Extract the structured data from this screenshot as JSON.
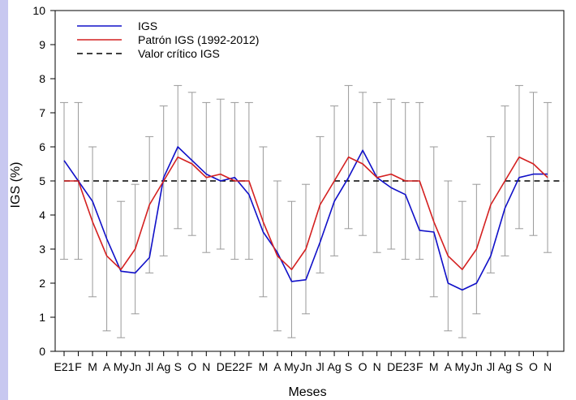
{
  "colors": {
    "igs": "#1010c8",
    "patron": "#d42020",
    "critico": "#000000",
    "errorbar": "#9a9a9a",
    "sidebar": "#c8c8f0"
  },
  "chart_data": {
    "type": "line",
    "xlabel": "Meses",
    "ylabel": "IGS (%)",
    "ylim": [
      0,
      10
    ],
    "yticks": [
      0,
      1,
      2,
      3,
      4,
      5,
      6,
      7,
      8,
      9,
      10
    ],
    "categories": [
      "E21",
      "F",
      "M",
      "A",
      "My",
      "Jn",
      "Jl",
      "Ag",
      "S",
      "O",
      "N",
      "D",
      "E22",
      "F",
      "M",
      "A",
      "My",
      "Jn",
      "Jl",
      "Ag",
      "S",
      "O",
      "N",
      "D",
      "E23",
      "F",
      "M",
      "A",
      "My",
      "Jn",
      "Jl",
      "Ag",
      "S",
      "O",
      "N"
    ],
    "legend": {
      "position": "top-left"
    },
    "series": [
      {
        "name": "IGS",
        "color": "#1010c8",
        "values": [
          5.6,
          5.0,
          4.4,
          3.3,
          2.35,
          2.3,
          2.75,
          5.1,
          6.0,
          5.6,
          5.2,
          5.0,
          5.1,
          4.6,
          3.5,
          2.9,
          2.05,
          2.1,
          3.2,
          4.4,
          5.1,
          5.9,
          5.1,
          4.8,
          4.6,
          3.55,
          3.5,
          2.0,
          1.8,
          2.0,
          2.8,
          4.2,
          5.1,
          5.2,
          5.2
        ]
      },
      {
        "name": "Patrón IGS (1992-2012)",
        "color": "#d42020",
        "values": [
          5.0,
          5.0,
          3.8,
          2.8,
          2.4,
          3.0,
          4.3,
          5.0,
          5.7,
          5.5,
          5.1,
          5.2,
          5.0,
          5.0,
          3.8,
          2.8,
          2.4,
          3.0,
          4.3,
          5.0,
          5.7,
          5.5,
          5.1,
          5.2,
          5.0,
          5.0,
          3.8,
          2.8,
          2.4,
          3.0,
          4.3,
          5.0,
          5.7,
          5.5,
          5.1
        ]
      },
      {
        "name": "Valor crítico IGS",
        "color": "#000000",
        "dashed": true,
        "value": 5.0,
        "segments": [
          [
            0,
            13
          ],
          [
            19,
            25
          ],
          [
            31,
            35
          ]
        ]
      }
    ],
    "error_bars": {
      "series": "Patrón IGS (1992-2012)",
      "low": [
        2.7,
        2.7,
        1.6,
        0.6,
        0.4,
        1.1,
        2.3,
        2.8,
        3.6,
        3.4,
        2.9,
        3.0,
        2.7,
        2.7,
        1.6,
        0.6,
        0.4,
        1.1,
        2.3,
        2.8,
        3.6,
        3.4,
        2.9,
        3.0,
        2.7,
        2.7,
        1.6,
        0.6,
        0.4,
        1.1,
        2.3,
        2.8,
        3.6,
        3.4,
        2.9
      ],
      "high": [
        7.3,
        7.3,
        6.0,
        5.0,
        4.4,
        4.9,
        6.3,
        7.2,
        7.8,
        7.6,
        7.3,
        7.4,
        7.3,
        7.3,
        6.0,
        5.0,
        4.4,
        4.9,
        6.3,
        7.2,
        7.8,
        7.6,
        7.3,
        7.4,
        7.3,
        7.3,
        6.0,
        5.0,
        4.4,
        4.9,
        6.3,
        7.2,
        7.8,
        7.6,
        7.3
      ]
    }
  }
}
